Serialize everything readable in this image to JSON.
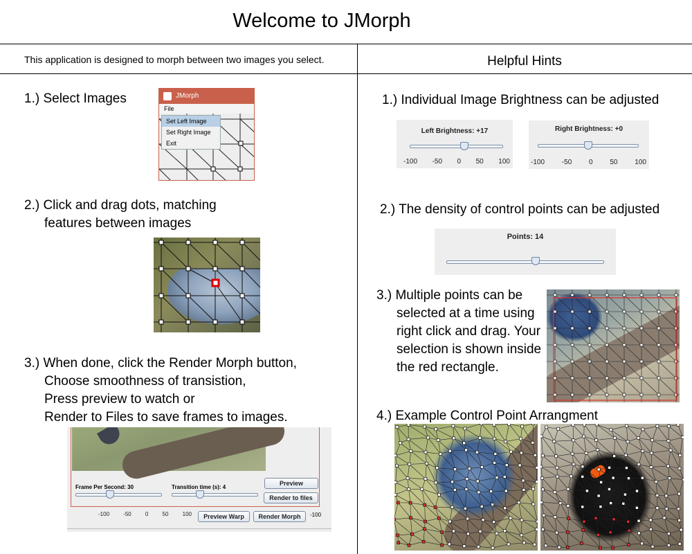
{
  "title": "Welcome to JMorph",
  "intro": "This application is designed to morph between two images you select.",
  "hints_title": "Helpful Hints",
  "left_steps": [
    {
      "lines": [
        "1.) Select Images"
      ]
    },
    {
      "lines": [
        "2.) Click and drag dots, matching",
        "features between images"
      ]
    },
    {
      "lines": [
        "3.) When done, click the Render Morph button,",
        "Choose smoothness of transistion,",
        "Press preview to watch or",
        "Render to Files to save frames to images."
      ]
    }
  ],
  "hints": [
    {
      "lines": [
        "1.) Individual Image Brightness can be adjusted"
      ]
    },
    {
      "lines": [
        "2.) The density of control points can be adjusted"
      ]
    },
    {
      "lines": [
        "3.) Multiple points can be",
        "selected at a time using",
        "right click and drag. Your",
        "selection is shown inside",
        "the red rectangle."
      ]
    },
    {
      "lines": [
        "4.) Example Control Point Arrangment"
      ]
    }
  ],
  "jmorph_window": {
    "title": "JMorph",
    "menu_label": "File",
    "menu_items": [
      "Set Left Image",
      "Set Right Image",
      "Exit"
    ]
  },
  "render_panel": {
    "fps_label": "Frame Per Second: 30",
    "fps_value": 30,
    "transition_label": "Transition time (s): 4",
    "transition_value": 4,
    "preview_button": "Preview",
    "render_files_button": "Render to files",
    "preview_warp_button": "Preview Warp",
    "render_morph_button": "Render Morph",
    "ticks": [
      "-100",
      "-50",
      "0",
      "50",
      "100"
    ],
    "extra_tick": "-100"
  },
  "brightness": {
    "left_label": "Left Brightness: +17",
    "left_value": 17,
    "right_label": "Right Brightness: +0",
    "right_value": 0,
    "ticks": [
      "-100",
      "-50",
      "0",
      "50",
      "100"
    ]
  },
  "points_slider": {
    "label": "Points: 14",
    "value": 14
  },
  "colors": {
    "title_bar": "#c9604b",
    "selection_rect": "#e03030",
    "control_point": "#ffffff"
  }
}
